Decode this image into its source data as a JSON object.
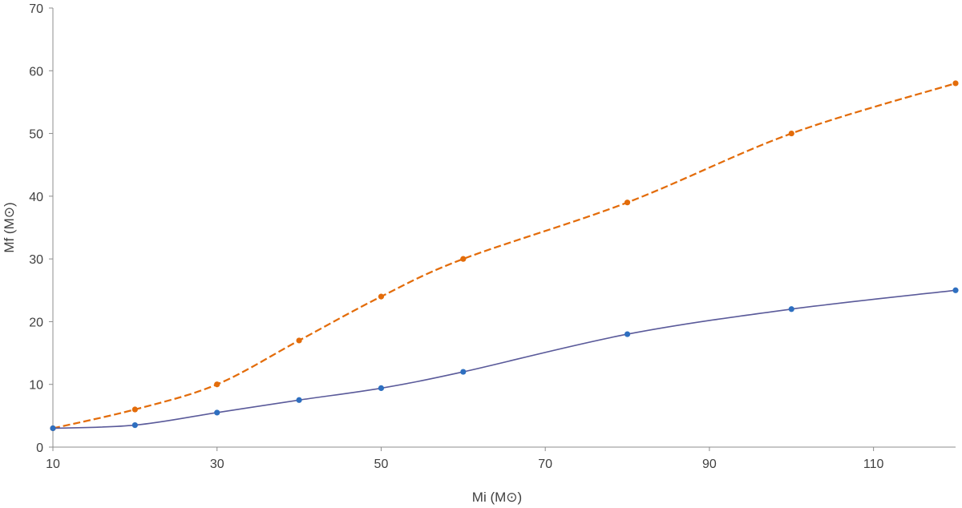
{
  "chart_data": {
    "type": "line",
    "title": "",
    "xlabel": "Mi (M⊙)",
    "ylabel": "Mf (M⊙)",
    "xlim": [
      10,
      120
    ],
    "ylim": [
      0,
      70
    ],
    "xticks": [
      10,
      30,
      50,
      70,
      90,
      110
    ],
    "yticks": [
      0,
      10,
      20,
      30,
      40,
      50,
      60,
      70
    ],
    "grid": false,
    "legend": "none",
    "series": [
      {
        "color": "#e36c0a",
        "line_style": "dashed",
        "marker": "circle",
        "x": [
          10,
          20,
          30,
          40,
          50,
          60,
          80,
          100,
          120
        ],
        "y": [
          3,
          6,
          10,
          17,
          24,
          30,
          39,
          50,
          58
        ]
      },
      {
        "color": "#5a5a9a",
        "marker_color": "#2e6fc0",
        "line_style": "solid",
        "marker": "circle",
        "x": [
          10,
          20,
          30,
          40,
          50,
          60,
          80,
          100,
          120
        ],
        "y": [
          3,
          3.5,
          5.5,
          7.5,
          9.4,
          12,
          18,
          22,
          25
        ]
      }
    ]
  }
}
